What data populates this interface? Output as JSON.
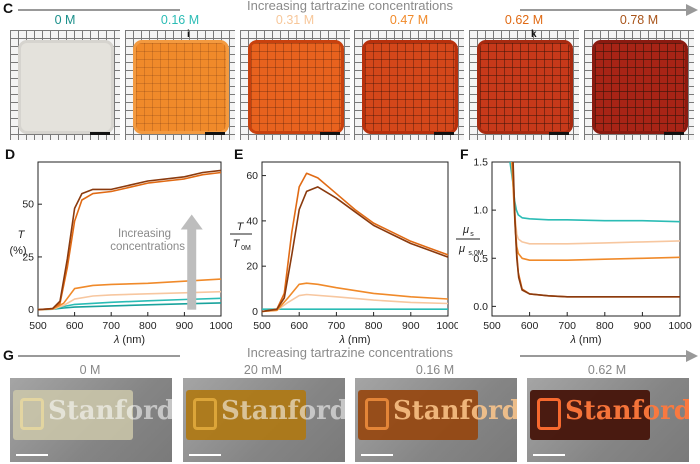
{
  "panels": {
    "C": "C",
    "D": "D",
    "E": "E",
    "F": "F",
    "G": "G"
  },
  "top_title": "Increasing tartrazine concentrations",
  "bottom_title": "Increasing tartrazine concentrations",
  "c_tiles": [
    {
      "label": "0 M",
      "color": "#1a8f8a",
      "fill": "#e4e2dc",
      "border": "#d6d4cf",
      "tag": ""
    },
    {
      "label": "0.16 M",
      "color": "#2bbcb5",
      "fill": "#f08a2a",
      "border": "#f39a40",
      "tag": "i"
    },
    {
      "label": "0.31 M",
      "color": "#f7c79a",
      "fill": "#e8621e",
      "border": "#c8410e",
      "tag": ""
    },
    {
      "label": "0.47 M",
      "color": "#f08a2a",
      "fill": "#d4471a",
      "border": "#b8300c",
      "tag": ""
    },
    {
      "label": "0.62 M",
      "color": "#e06a14",
      "fill": "#c7391a",
      "border": "#a82a10",
      "tag": "k"
    },
    {
      "label": "0.78 M",
      "color": "#a8541a",
      "fill": "#a82416",
      "border": "#8a1a10",
      "tag": ""
    }
  ],
  "annotation_D": {
    "line1": "Increasing",
    "line2": "concentrations"
  },
  "g_labels": [
    "0 M",
    "20 mM",
    "0.16 M",
    "0.62 M"
  ],
  "g_word": "Stanford",
  "chart_data": [
    {
      "id": "D",
      "type": "line",
      "ylabel_main": "T",
      "ylabel_unit": "(%)",
      "xlabel_main": "λ",
      "xlabel_unit": "(nm)",
      "xlim": [
        500,
        1000
      ],
      "ylim": [
        -3,
        70
      ],
      "xticks": [
        500,
        600,
        700,
        800,
        900,
        1000
      ],
      "yticks": [
        0,
        25,
        50
      ],
      "series": [
        {
          "color": "#1aa39d",
          "x": [
            500,
            540,
            570,
            600,
            700,
            800,
            900,
            1000
          ],
          "y": [
            0,
            0.2,
            0.8,
            1.2,
            1.8,
            2.3,
            2.8,
            3.2
          ]
        },
        {
          "color": "#2bbcb5",
          "x": [
            500,
            540,
            570,
            600,
            700,
            800,
            900,
            1000
          ],
          "y": [
            0,
            0.3,
            1.5,
            2.5,
            3.5,
            4.2,
            4.8,
            5.4
          ]
        },
        {
          "color": "#f7c7a0",
          "x": [
            500,
            540,
            570,
            600,
            650,
            700,
            800,
            900,
            1000
          ],
          "y": [
            0,
            0.2,
            2,
            5,
            6.5,
            7,
            7.5,
            8,
            8.5
          ]
        },
        {
          "color": "#f08a2a",
          "x": [
            500,
            540,
            570,
            600,
            650,
            700,
            800,
            900,
            1000
          ],
          "y": [
            0,
            0.3,
            3,
            10,
            11.5,
            12,
            12.5,
            13.5,
            14.5
          ]
        },
        {
          "color": "#e06a14",
          "x": [
            500,
            540,
            560,
            580,
            600,
            620,
            650,
            700,
            750,
            800,
            850,
            900,
            950,
            1000
          ],
          "y": [
            0,
            0.5,
            3,
            20,
            42,
            52,
            55,
            56,
            58,
            60,
            61,
            62,
            64,
            65
          ]
        },
        {
          "color": "#8a3a0e",
          "x": [
            500,
            540,
            560,
            580,
            600,
            620,
            650,
            700,
            750,
            800,
            850,
            900,
            950,
            1000
          ],
          "y": [
            0,
            0.5,
            4,
            24,
            48,
            55,
            57,
            57,
            59,
            61,
            62,
            63,
            65,
            66
          ]
        }
      ]
    },
    {
      "id": "E",
      "type": "line",
      "ylabel_main": "T",
      "ylabel_denom": "T",
      "ylabel_sub": "0M",
      "xlabel_main": "λ",
      "xlabel_unit": "(nm)",
      "xlim": [
        500,
        1000
      ],
      "ylim": [
        -2,
        66
      ],
      "xticks": [
        500,
        600,
        700,
        800,
        900,
        1000
      ],
      "yticks": [
        0,
        20,
        40,
        60
      ],
      "series": [
        {
          "color": "#2bbcb5",
          "x": [
            500,
            550,
            600,
            700,
            800,
            900,
            1000
          ],
          "y": [
            1,
            1,
            1,
            1,
            1,
            1,
            1
          ]
        },
        {
          "color": "#f7c7a0",
          "x": [
            500,
            540,
            570,
            600,
            620,
            700,
            800,
            900,
            1000
          ],
          "y": [
            0,
            0.5,
            4,
            7,
            7.5,
            6.5,
            5,
            4,
            3.5
          ]
        },
        {
          "color": "#f08a2a",
          "x": [
            500,
            540,
            570,
            600,
            620,
            650,
            700,
            800,
            900,
            1000
          ],
          "y": [
            0,
            0.5,
            6,
            12,
            12.5,
            12,
            10.5,
            8,
            6.5,
            5.5
          ]
        },
        {
          "color": "#e06a14",
          "x": [
            500,
            540,
            560,
            580,
            600,
            620,
            650,
            700,
            750,
            800,
            850,
            900,
            950,
            1000
          ],
          "y": [
            0,
            1,
            8,
            35,
            55,
            61,
            59,
            52,
            45,
            39,
            35,
            31,
            28,
            25
          ]
        },
        {
          "color": "#8a3a0e",
          "x": [
            500,
            540,
            560,
            580,
            600,
            620,
            650,
            700,
            750,
            800,
            850,
            900,
            950,
            1000
          ],
          "y": [
            0,
            1,
            6,
            25,
            45,
            53,
            55,
            50,
            44,
            38,
            34,
            30,
            27,
            24
          ]
        }
      ]
    },
    {
      "id": "F",
      "type": "line",
      "ylabel_main": "μ",
      "ylabel_sub": "s",
      "ylabel_denom": "μ",
      "ylabel_denom_sub": "s,0M",
      "xlabel_main": "λ",
      "xlabel_unit": "(nm)",
      "xlim": [
        500,
        1000
      ],
      "ylim": [
        -0.1,
        1.5
      ],
      "xticks": [
        500,
        600,
        700,
        800,
        900,
        1000
      ],
      "yticks": [
        0.0,
        0.5,
        1.0,
        1.5
      ],
      "series": [
        {
          "color": "#2bbcb5",
          "x": [
            548,
            555,
            560,
            565,
            570,
            580,
            600,
            650,
            700,
            800,
            900,
            1000
          ],
          "y": [
            1.5,
            1.3,
            1.1,
            1.0,
            0.95,
            0.92,
            0.91,
            0.9,
            0.9,
            0.89,
            0.89,
            0.88
          ]
        },
        {
          "color": "#f7c7a0",
          "x": [
            552,
            558,
            562,
            566,
            570,
            580,
            600,
            650,
            700,
            800,
            900,
            1000
          ],
          "y": [
            1.5,
            1.2,
            0.9,
            0.75,
            0.7,
            0.67,
            0.65,
            0.65,
            0.65,
            0.66,
            0.67,
            0.68
          ]
        },
        {
          "color": "#f08a2a",
          "x": [
            553,
            558,
            562,
            566,
            570,
            580,
            600,
            650,
            700,
            800,
            900,
            1000
          ],
          "y": [
            1.5,
            1.1,
            0.8,
            0.62,
            0.55,
            0.5,
            0.48,
            0.48,
            0.48,
            0.49,
            0.5,
            0.51
          ]
        },
        {
          "color": "#e06a14",
          "x": [
            555,
            560,
            565,
            570,
            580,
            600,
            650,
            700,
            800,
            900,
            1000
          ],
          "y": [
            1.5,
            1.0,
            0.6,
            0.35,
            0.18,
            0.13,
            0.11,
            0.1,
            0.1,
            0.1,
            0.1
          ]
        },
        {
          "color": "#8a3a0e",
          "x": [
            556,
            561,
            566,
            571,
            580,
            600,
            650,
            700,
            800,
            900,
            1000
          ],
          "y": [
            1.5,
            0.9,
            0.5,
            0.3,
            0.17,
            0.13,
            0.11,
            0.1,
            0.1,
            0.1,
            0.1
          ]
        }
      ]
    }
  ]
}
